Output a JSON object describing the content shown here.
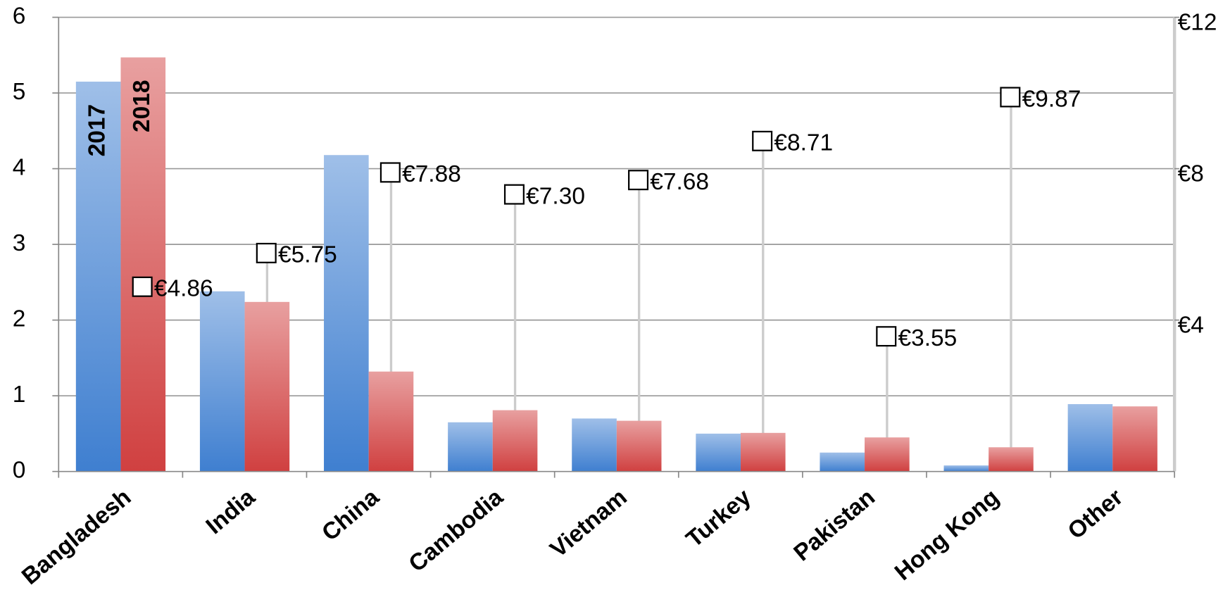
{
  "chart_data": {
    "type": "bar",
    "categories": [
      "Bangladesh",
      "India",
      "China",
      "Cambodia",
      "Vietnam",
      "Turkey",
      "Pakistan",
      "Hong Kong",
      "Other"
    ],
    "series": [
      {
        "name": "2017",
        "color": "#3f7fd0",
        "values": [
          5.15,
          2.38,
          4.18,
          0.65,
          0.7,
          0.5,
          0.25,
          0.08,
          0.89
        ]
      },
      {
        "name": "2018",
        "color": "#d04040",
        "values": [
          5.47,
          2.24,
          1.32,
          0.81,
          0.67,
          0.51,
          0.45,
          0.32,
          0.86
        ]
      },
      {
        "type": "marker",
        "axis": "y2",
        "color": "#000000",
        "values": [
          4.86,
          5.75,
          7.88,
          7.3,
          7.68,
          8.71,
          3.55,
          9.87,
          null
        ],
        "value_labels": [
          "€4.86",
          "€5.75",
          "€7.88",
          "€7.30",
          "€7.68",
          "€8.71",
          "€3.55",
          "€9.87",
          null
        ]
      }
    ],
    "ylim": [
      0,
      6
    ],
    "yticks": [
      0,
      1,
      2,
      3,
      4,
      5,
      6
    ],
    "y2lim": [
      0,
      12
    ],
    "y2ticks": [
      {
        "value": 4,
        "label": "€4"
      },
      {
        "value": 8,
        "label": "€8"
      },
      {
        "value": 12,
        "label": "€12"
      }
    ],
    "grid": true
  }
}
